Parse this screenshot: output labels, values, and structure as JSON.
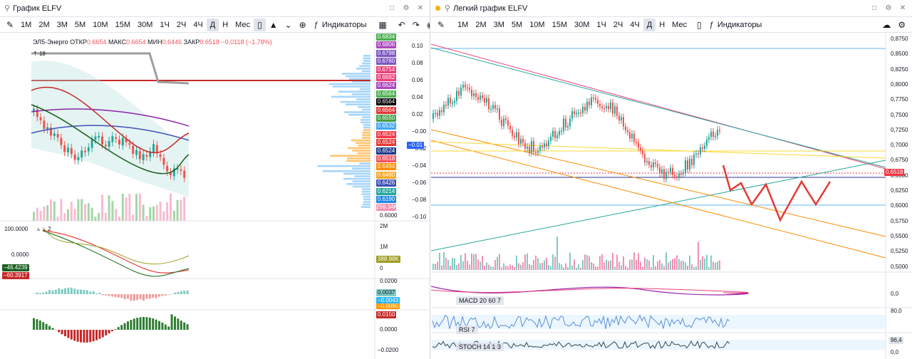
{
  "left": {
    "title": "График ELFV",
    "timeframes": [
      "1M",
      "2M",
      "3M",
      "5M",
      "10M",
      "15M",
      "30M",
      "1Ч",
      "2Ч",
      "4Ч",
      "Д",
      "Н",
      "Мес"
    ],
    "active_timeframe": "Д",
    "indicators_label": "Индикаторы",
    "legend": {
      "symbol": "ЭЛ5-Энерго",
      "open_label": "ОТКР",
      "open": "0.6654",
      "high_label": "МАКС",
      "high": "0.6654",
      "low_label": "МИН",
      "low": "0.6446",
      "close_label": "ЗАКР",
      "close": "0.6518",
      "change": "−0.0118 (−1.78%)"
    },
    "volume_badge": "18",
    "price_ladder": [
      {
        "v": "0.6834",
        "c": "#4caf50"
      },
      {
        "v": "0.6806",
        "c": "#ab47bc"
      },
      {
        "v": "0.6798",
        "c": "#7e57c2"
      },
      {
        "v": "0.6760",
        "c": "#7e57c2"
      },
      {
        "v": "0.6754",
        "c": "#ec407a"
      },
      {
        "v": "0.6682",
        "c": "#ec407a"
      },
      {
        "v": "0.6624",
        "c": "#ab47bc"
      },
      {
        "v": "0.6564",
        "c": "#4caf50"
      },
      {
        "v": "0.6564",
        "c": "#000000"
      },
      {
        "v": "0.6564",
        "c": "#e53935"
      },
      {
        "v": "0.6550",
        "c": "#43a047"
      },
      {
        "v": "0.6532",
        "c": "#42a5f5"
      },
      {
        "v": "0.6524",
        "c": "#f23645"
      },
      {
        "v": "0.6524",
        "c": "#e53935"
      },
      {
        "v": "0.6524",
        "c": "#1e3a8a"
      },
      {
        "v": "0.6518",
        "c": "#f7525f"
      },
      {
        "v": "0.6494",
        "c": "#fb8c00"
      },
      {
        "v": "0.6480",
        "c": "#f9a825"
      },
      {
        "v": "0.6426",
        "c": "#3f51b5"
      },
      {
        "v": "0.6214",
        "c": "#26a69a"
      },
      {
        "v": "0.6190",
        "c": "#1e88e5"
      },
      {
        "v": "259.34K",
        "c": "#f48fb1"
      }
    ],
    "right_axis": [
      "0.10",
      "0.08",
      "0.06",
      "0.04",
      "0.02",
      "−0.00",
      "−0.02",
      "−0.04",
      "−0.06",
      "−0.08",
      "−0.10"
    ],
    "price_axis_bottom": "0.6000",
    "blue_tag": "−0.01",
    "osc1": {
      "top": "100.0000",
      "mid": "0.0000",
      "badge": "2",
      "v1": "−46.4239",
      "v2": "−60.3917",
      "vol_top": "2M",
      "vol_mid": "1M",
      "vol_val": "388.98K",
      "vol_zero": "0"
    },
    "osc2": {
      "top": "0.0200",
      "v1": "0.0037",
      "v2": "−0.0043",
      "v3": "−0.0080"
    },
    "osc3": {
      "v1": "0.0150",
      "mid": "0.0000",
      "bottom": "−0.0200"
    }
  },
  "right": {
    "title": "Легкий график ELFV",
    "timeframes": [
      "1M",
      "2M",
      "3M",
      "5M",
      "10M",
      "15M",
      "30M",
      "1Ч",
      "2Ч",
      "4Ч",
      "Д",
      "Н",
      "Мес"
    ],
    "active_timeframe": "Д",
    "indicators_label": "Индикаторы",
    "price_axis": [
      "0,8750",
      "0,8500",
      "0,8250",
      "0,8000",
      "0,7750",
      "0,7500",
      "0,7250",
      "0,7000",
      "0,6750",
      "0,6500",
      "0,6250",
      "0,6000",
      "0,5750",
      "0,5500",
      "0,5250",
      "0,5000"
    ],
    "last_price": "0,6518",
    "macd_label": "MACD 20 60 7",
    "macd_zero": "0,0",
    "rsi_label": "RSI 7",
    "rsi_top": "80,0",
    "stoch_label": "STOCH 14 1 3",
    "stoch_val": "96,4",
    "stoch_zero": "0,0"
  }
}
